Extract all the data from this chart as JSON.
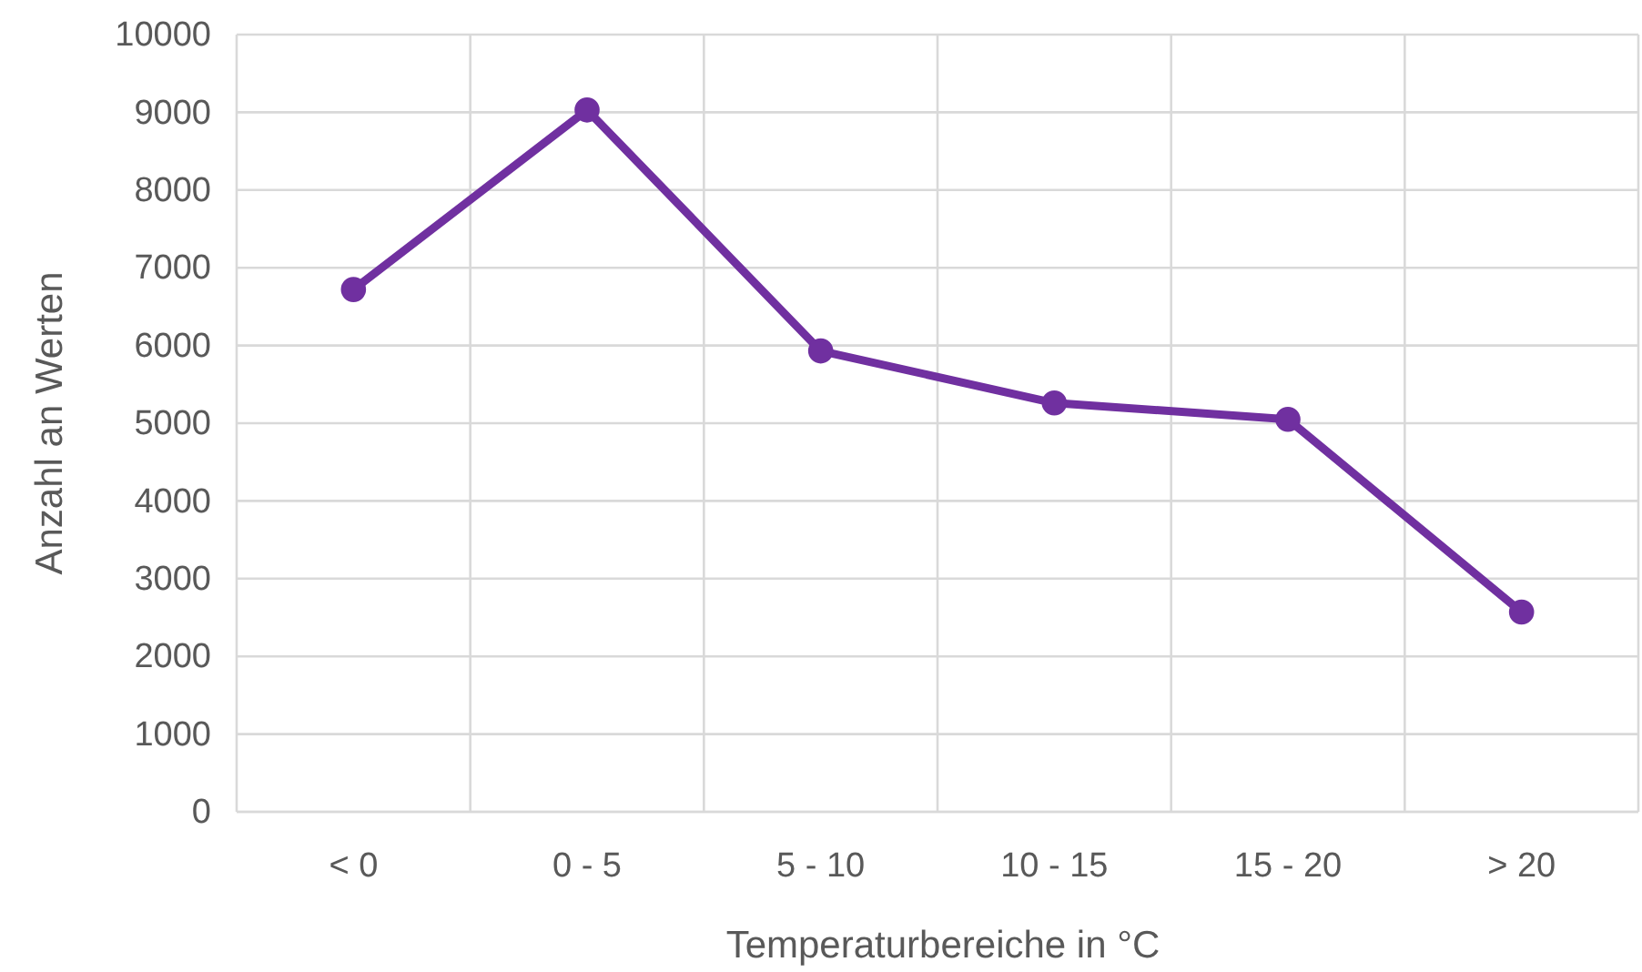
{
  "chart_data": {
    "type": "line",
    "xlabel": "Temperaturbereiche in °C",
    "ylabel": "Anzahl an Werten",
    "categories": [
      "< 0",
      "0 - 5",
      "5 - 10",
      "10 - 15",
      "15 - 20",
      "> 20"
    ],
    "series": [
      {
        "color": "#7030a0",
        "values": [
          6720,
          9030,
          5930,
          5260,
          5050,
          2570
        ]
      }
    ],
    "ylim": [
      0,
      10000
    ],
    "yticks": [
      0,
      1000,
      2000,
      3000,
      4000,
      5000,
      6000,
      7000,
      8000,
      9000,
      10000
    ],
    "grid": true,
    "marker": "circle",
    "line_style": "solid"
  }
}
